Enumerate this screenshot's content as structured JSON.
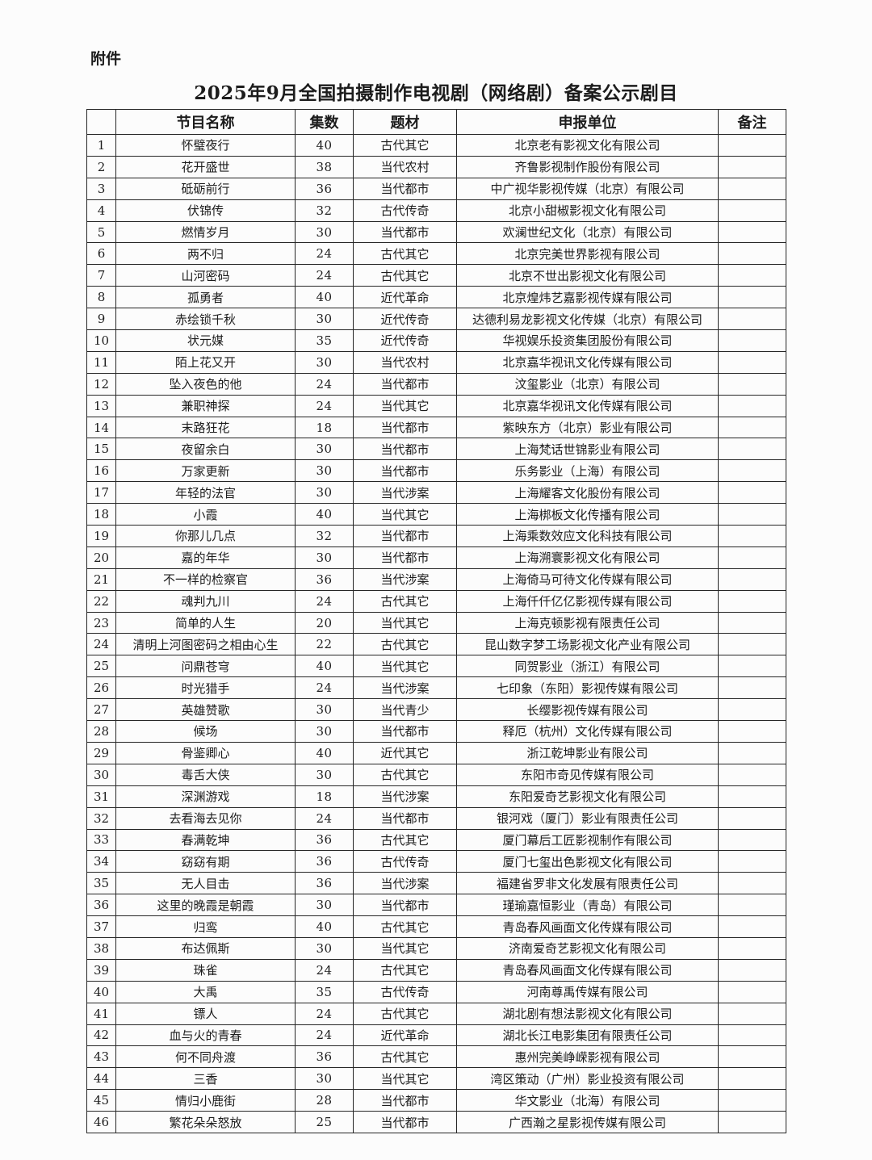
{
  "page": {
    "attachment_label": "附件",
    "title": "2025年9月全国拍摄制作电视剧（网络剧）备案公示剧目"
  },
  "table": {
    "headers": {
      "no": "",
      "name": "节目名称",
      "episodes": "集数",
      "genre": "题材",
      "company": "申报单位",
      "remark": "备注"
    },
    "rows": [
      {
        "no": "1",
        "name": "怀璧夜行",
        "episodes": "40",
        "genre": "古代其它",
        "company": "北京老有影视文化有限公司",
        "remark": ""
      },
      {
        "no": "2",
        "name": "花开盛世",
        "episodes": "38",
        "genre": "当代农村",
        "company": "齐鲁影视制作股份有限公司",
        "remark": ""
      },
      {
        "no": "3",
        "name": "砥砺前行",
        "episodes": "36",
        "genre": "当代都市",
        "company": "中广视华影视传媒（北京）有限公司",
        "remark": ""
      },
      {
        "no": "4",
        "name": "伏锦传",
        "episodes": "32",
        "genre": "古代传奇",
        "company": "北京小甜椒影视文化有限公司",
        "remark": ""
      },
      {
        "no": "5",
        "name": "燃情岁月",
        "episodes": "30",
        "genre": "当代都市",
        "company": "欢澜世纪文化（北京）有限公司",
        "remark": ""
      },
      {
        "no": "6",
        "name": "两不归",
        "episodes": "24",
        "genre": "古代其它",
        "company": "北京完美世界影视有限公司",
        "remark": ""
      },
      {
        "no": "7",
        "name": "山河密码",
        "episodes": "24",
        "genre": "古代其它",
        "company": "北京不世出影视文化有限公司",
        "remark": ""
      },
      {
        "no": "8",
        "name": "孤勇者",
        "episodes": "40",
        "genre": "近代革命",
        "company": "北京煌炜艺嘉影视传媒有限公司",
        "remark": ""
      },
      {
        "no": "9",
        "name": "赤绘锁千秋",
        "episodes": "30",
        "genre": "近代传奇",
        "company": "达德利易龙影视文化传媒（北京）有限公司",
        "remark": ""
      },
      {
        "no": "10",
        "name": "状元媒",
        "episodes": "35",
        "genre": "近代传奇",
        "company": "华视娱乐投资集团股份有限公司",
        "remark": ""
      },
      {
        "no": "11",
        "name": "陌上花又开",
        "episodes": "30",
        "genre": "当代农村",
        "company": "北京嘉华视讯文化传媒有限公司",
        "remark": ""
      },
      {
        "no": "12",
        "name": "坠入夜色的他",
        "episodes": "24",
        "genre": "当代都市",
        "company": "汶玺影业（北京）有限公司",
        "remark": ""
      },
      {
        "no": "13",
        "name": "兼职神探",
        "episodes": "24",
        "genre": "当代其它",
        "company": "北京嘉华视讯文化传媒有限公司",
        "remark": ""
      },
      {
        "no": "14",
        "name": "末路狂花",
        "episodes": "18",
        "genre": "当代都市",
        "company": "紫映东方（北京）影业有限公司",
        "remark": ""
      },
      {
        "no": "15",
        "name": "夜留余白",
        "episodes": "30",
        "genre": "当代都市",
        "company": "上海梵话世锦影业有限公司",
        "remark": ""
      },
      {
        "no": "16",
        "name": "万家更新",
        "episodes": "30",
        "genre": "当代都市",
        "company": "乐务影业（上海）有限公司",
        "remark": ""
      },
      {
        "no": "17",
        "name": "年轻的法官",
        "episodes": "30",
        "genre": "当代涉案",
        "company": "上海耀客文化股份有限公司",
        "remark": ""
      },
      {
        "no": "18",
        "name": "小霞",
        "episodes": "40",
        "genre": "当代其它",
        "company": "上海梆板文化传播有限公司",
        "remark": ""
      },
      {
        "no": "19",
        "name": "你那儿几点",
        "episodes": "32",
        "genre": "当代都市",
        "company": "上海乘数效应文化科技有限公司",
        "remark": ""
      },
      {
        "no": "20",
        "name": "嘉的年华",
        "episodes": "30",
        "genre": "当代都市",
        "company": "上海溯寰影视文化有限公司",
        "remark": ""
      },
      {
        "no": "21",
        "name": "不一样的检察官",
        "episodes": "36",
        "genre": "当代涉案",
        "company": "上海倚马可待文化传媒有限公司",
        "remark": ""
      },
      {
        "no": "22",
        "name": "魂判九川",
        "episodes": "24",
        "genre": "古代其它",
        "company": "上海仟仟亿亿影视传媒有限公司",
        "remark": ""
      },
      {
        "no": "23",
        "name": "简单的人生",
        "episodes": "20",
        "genre": "当代其它",
        "company": "上海克顿影视有限责任公司",
        "remark": ""
      },
      {
        "no": "24",
        "name": "清明上河图密码之相由心生",
        "episodes": "22",
        "genre": "古代其它",
        "company": "昆山数字梦工场影视文化产业有限公司",
        "remark": ""
      },
      {
        "no": "25",
        "name": "问鼎苍穹",
        "episodes": "40",
        "genre": "当代其它",
        "company": "同贺影业（浙江）有限公司",
        "remark": ""
      },
      {
        "no": "26",
        "name": "时光猎手",
        "episodes": "24",
        "genre": "当代涉案",
        "company": "七印象（东阳）影视传媒有限公司",
        "remark": ""
      },
      {
        "no": "27",
        "name": "英雄赞歌",
        "episodes": "30",
        "genre": "当代青少",
        "company": "长缨影视传媒有限公司",
        "remark": ""
      },
      {
        "no": "28",
        "name": "候场",
        "episodes": "30",
        "genre": "当代都市",
        "company": "释厄（杭州）文化传媒有限公司",
        "remark": ""
      },
      {
        "no": "29",
        "name": "骨鉴卿心",
        "episodes": "40",
        "genre": "近代其它",
        "company": "浙江乾坤影业有限公司",
        "remark": ""
      },
      {
        "no": "30",
        "name": "毒舌大侠",
        "episodes": "30",
        "genre": "古代其它",
        "company": "东阳市奇见传媒有限公司",
        "remark": ""
      },
      {
        "no": "31",
        "name": "深渊游戏",
        "episodes": "18",
        "genre": "当代涉案",
        "company": "东阳爱奇艺影视文化有限公司",
        "remark": ""
      },
      {
        "no": "32",
        "name": "去看海去见你",
        "episodes": "24",
        "genre": "当代都市",
        "company": "银河戏（厦门）影业有限责任公司",
        "remark": ""
      },
      {
        "no": "33",
        "name": "春满乾坤",
        "episodes": "36",
        "genre": "古代其它",
        "company": "厦门幕后工匠影视制作有限公司",
        "remark": ""
      },
      {
        "no": "34",
        "name": "窈窈有期",
        "episodes": "36",
        "genre": "古代传奇",
        "company": "厦门七玺出色影视文化有限公司",
        "remark": ""
      },
      {
        "no": "35",
        "name": "无人目击",
        "episodes": "36",
        "genre": "当代涉案",
        "company": "福建省罗非文化发展有限责任公司",
        "remark": ""
      },
      {
        "no": "36",
        "name": "这里的晚霞是朝霞",
        "episodes": "30",
        "genre": "当代都市",
        "company": "瑾瑜嘉恒影业（青岛）有限公司",
        "remark": ""
      },
      {
        "no": "37",
        "name": "归鸾",
        "episodes": "40",
        "genre": "古代其它",
        "company": "青岛春风画面文化传媒有限公司",
        "remark": ""
      },
      {
        "no": "38",
        "name": "布达佩斯",
        "episodes": "30",
        "genre": "当代其它",
        "company": "济南爱奇艺影视文化有限公司",
        "remark": ""
      },
      {
        "no": "39",
        "name": "珠雀",
        "episodes": "24",
        "genre": "古代其它",
        "company": "青岛春风画面文化传媒有限公司",
        "remark": ""
      },
      {
        "no": "40",
        "name": "大禹",
        "episodes": "35",
        "genre": "古代传奇",
        "company": "河南尊禹传媒有限公司",
        "remark": ""
      },
      {
        "no": "41",
        "name": "镖人",
        "episodes": "24",
        "genre": "古代其它",
        "company": "湖北剧有想法影视文化有限公司",
        "remark": ""
      },
      {
        "no": "42",
        "name": "血与火的青春",
        "episodes": "24",
        "genre": "近代革命",
        "company": "湖北长江电影集团有限责任公司",
        "remark": ""
      },
      {
        "no": "43",
        "name": "何不同舟渡",
        "episodes": "36",
        "genre": "古代其它",
        "company": "惠州完美峥嵘影视有限公司",
        "remark": ""
      },
      {
        "no": "44",
        "name": "三香",
        "episodes": "30",
        "genre": "当代其它",
        "company": "湾区策动（广州）影业投资有限公司",
        "remark": ""
      },
      {
        "no": "45",
        "name": "情归小鹿街",
        "episodes": "28",
        "genre": "当代都市",
        "company": "华文影业（北海）有限公司",
        "remark": ""
      },
      {
        "no": "46",
        "name": "繁花朵朵怒放",
        "episodes": "25",
        "genre": "当代都市",
        "company": "广西瀚之星影视传媒有限公司",
        "remark": ""
      }
    ]
  }
}
